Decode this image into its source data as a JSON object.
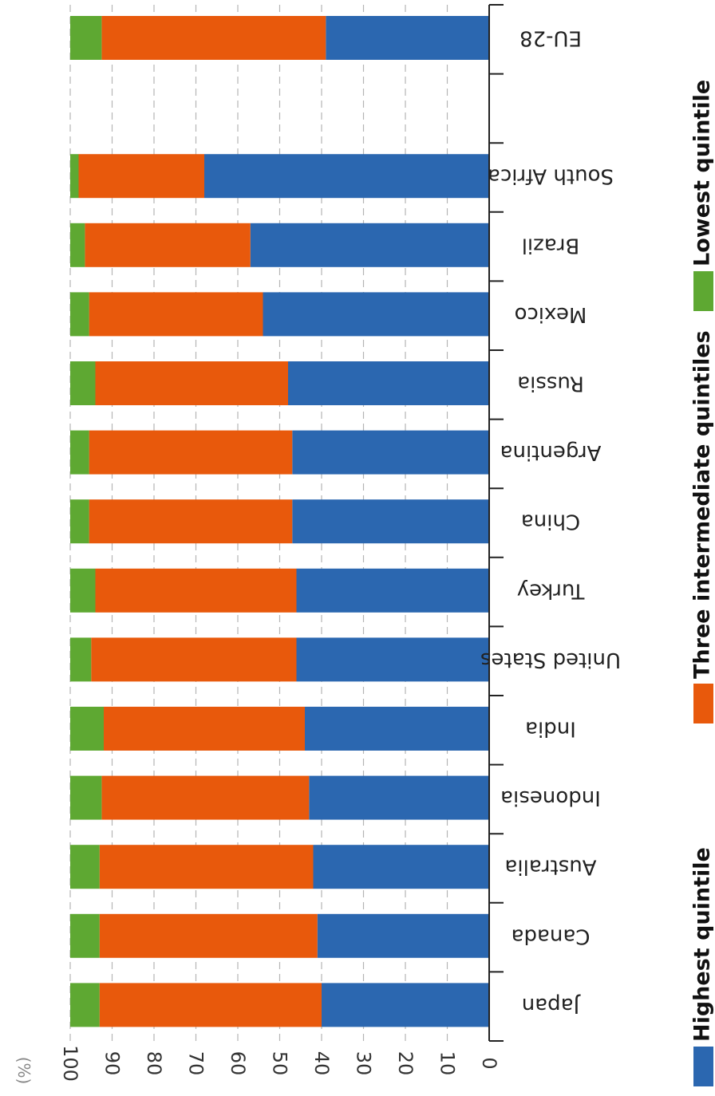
{
  "chart_data": {
    "type": "bar",
    "orientation": "horizontal",
    "stacked": true,
    "unit_label": "(%)",
    "xlim": [
      0,
      100
    ],
    "x_ticks": [
      0,
      10,
      20,
      30,
      40,
      50,
      60,
      70,
      80,
      90,
      100
    ],
    "grid": true,
    "legend_position": "bottom",
    "categories": [
      "EU-28",
      "",
      "South Africa",
      "Brazil",
      "Mexico",
      "Russia",
      "Argentina",
      "China",
      "Turkey",
      "United States",
      "India",
      "Indonesia",
      "Australia",
      "Canada",
      "Japan"
    ],
    "series": [
      {
        "name": "Highest quintile",
        "color": "#2b67b0",
        "values": [
          39,
          null,
          68,
          57,
          54,
          48,
          47,
          47,
          46,
          46,
          44,
          43,
          42,
          41,
          40
        ]
      },
      {
        "name": "Three intermediate quintiles",
        "color": "#e8590c",
        "values": [
          53.5,
          null,
          30,
          39.5,
          41.5,
          46,
          48.5,
          48.5,
          48,
          49,
          48,
          49.5,
          51,
          52,
          53
        ]
      },
      {
        "name": "Lowest quintile",
        "color": "#5ea832",
        "values": [
          7.5,
          null,
          2,
          3.5,
          4.5,
          6,
          4.5,
          4.5,
          6,
          5,
          8,
          7.5,
          7,
          7,
          7
        ]
      }
    ]
  }
}
